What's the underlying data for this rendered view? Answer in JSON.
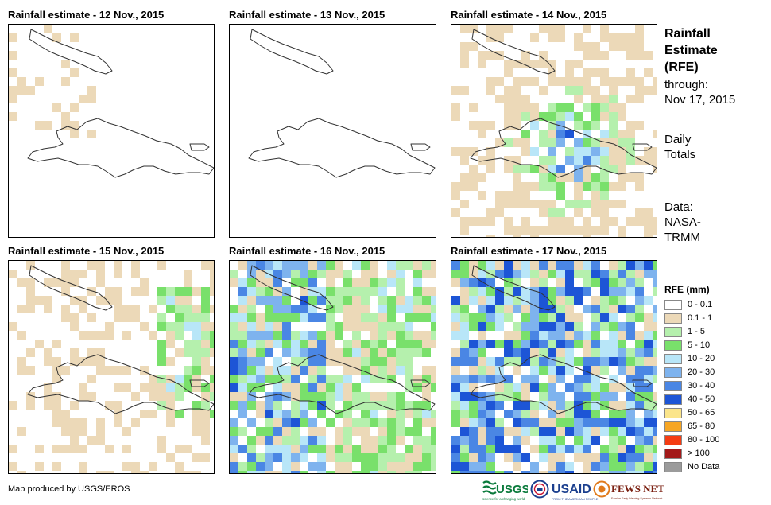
{
  "panels": [
    {
      "title": "Rainfall estimate - 12 Nov., 2015",
      "seed": 12,
      "intensity": 0.1,
      "focus": "nw"
    },
    {
      "title": "Rainfall estimate - 13 Nov., 2015",
      "seed": 13,
      "intensity": 0.12,
      "focus": "none"
    },
    {
      "title": "Rainfall estimate - 14 Nov., 2015",
      "seed": 14,
      "intensity": 0.3,
      "focus": "center"
    },
    {
      "title": "Rainfall estimate - 15 Nov., 2015",
      "seed": 15,
      "intensity": 0.25,
      "focus": "east"
    },
    {
      "title": "Rainfall estimate - 16 Nov., 2015",
      "seed": 16,
      "intensity": 0.6,
      "focus": "west"
    },
    {
      "title": "Rainfall estimate - 17 Nov., 2015",
      "seed": 17,
      "intensity": 0.85,
      "focus": "all"
    }
  ],
  "side": {
    "title_line1": "Rainfall",
    "title_line2": "Estimate",
    "title_line3": "(RFE)",
    "through_label": "through:",
    "through_date": "Nov 17, 2015",
    "daily_line1": "Daily",
    "daily_line2": "Totals",
    "data_line1": "Data:",
    "data_line2": "NASA-",
    "data_line3": "TRMM"
  },
  "legend": {
    "title": "RFE (mm)",
    "items": [
      {
        "label": "0 - 0.1",
        "color": "#ffffff"
      },
      {
        "label": "0.1 - 1",
        "color": "#ecd9b8"
      },
      {
        "label": "1 - 5",
        "color": "#b5f0ad"
      },
      {
        "label": "5 - 10",
        "color": "#79e06b"
      },
      {
        "label": "10 - 20",
        "color": "#b8e6f8"
      },
      {
        "label": "20 - 30",
        "color": "#7eb3ee"
      },
      {
        "label": "30 - 40",
        "color": "#4a86e4"
      },
      {
        "label": "40 - 50",
        "color": "#1d55d6"
      },
      {
        "label": "50 - 65",
        "color": "#fbe58a"
      },
      {
        "label": "65 - 80",
        "color": "#f7a623"
      },
      {
        "label": "80 - 100",
        "color": "#f53c12"
      },
      {
        "label": "> 100",
        "color": "#a31a1a"
      },
      {
        "label": "No Data",
        "color": "#9b9b9b"
      }
    ]
  },
  "credit": "Map produced by USGS/EROS",
  "logos": {
    "usgs": "USGS",
    "usgs_tagline": "science for a changing world",
    "usaid": "USAID",
    "usaid_tagline": "FROM THE AMERICAN PEOPLE",
    "fewsnet": "FEWS NET",
    "fewsnet_tagline": "Famine Early Warning Systems Network"
  }
}
